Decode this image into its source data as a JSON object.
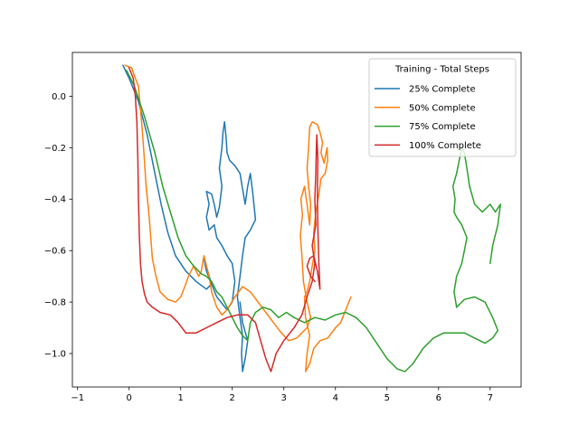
{
  "chart_data": {
    "type": "line",
    "title": "",
    "xlabel": "",
    "ylabel": "",
    "xlim": [
      -1.1,
      7.6
    ],
    "ylim": [
      -1.13,
      0.17
    ],
    "xticks": [
      -1,
      0,
      1,
      2,
      3,
      4,
      5,
      6,
      7
    ],
    "yticks": [
      0.0,
      -0.2,
      -0.4,
      -0.6,
      -0.8,
      -1.0
    ],
    "xtick_labels": [
      "−1",
      "0",
      "1",
      "2",
      "3",
      "4",
      "5",
      "6",
      "7"
    ],
    "ytick_labels": [
      "0.0",
      "−0.2",
      "−0.4",
      "−0.6",
      "−0.8",
      "−1.0"
    ],
    "grid": false,
    "legend": {
      "title": "Training - Total Steps",
      "placement": "top-right"
    },
    "series": [
      {
        "name": "25% Complete",
        "color": "#1f77b4",
        "points": [
          [
            -0.12,
            0.12
          ],
          [
            0.0,
            0.07
          ],
          [
            0.18,
            -0.02
          ],
          [
            0.35,
            -0.15
          ],
          [
            0.5,
            -0.3
          ],
          [
            0.62,
            -0.42
          ],
          [
            0.75,
            -0.53
          ],
          [
            0.9,
            -0.62
          ],
          [
            1.1,
            -0.68
          ],
          [
            1.3,
            -0.72
          ],
          [
            1.5,
            -0.75
          ],
          [
            1.6,
            -0.73
          ],
          [
            1.45,
            -0.63
          ],
          [
            1.5,
            -0.68
          ],
          [
            1.7,
            -0.78
          ],
          [
            1.9,
            -0.83
          ],
          [
            2.0,
            -0.8
          ],
          [
            2.05,
            -0.72
          ],
          [
            2.0,
            -0.65
          ],
          [
            1.9,
            -0.62
          ],
          [
            1.8,
            -0.58
          ],
          [
            1.7,
            -0.55
          ],
          [
            1.65,
            -0.5
          ],
          [
            1.55,
            -0.52
          ],
          [
            1.5,
            -0.47
          ],
          [
            1.55,
            -0.42
          ],
          [
            1.5,
            -0.37
          ],
          [
            1.6,
            -0.38
          ],
          [
            1.65,
            -0.42
          ],
          [
            1.7,
            -0.47
          ],
          [
            1.75,
            -0.43
          ],
          [
            1.8,
            -0.35
          ],
          [
            1.75,
            -0.28
          ],
          [
            1.8,
            -0.2
          ],
          [
            1.82,
            -0.14
          ],
          [
            1.85,
            -0.1
          ],
          [
            1.88,
            -0.16
          ],
          [
            1.9,
            -0.22
          ],
          [
            1.95,
            -0.25
          ],
          [
            2.05,
            -0.27
          ],
          [
            2.15,
            -0.3
          ],
          [
            2.2,
            -0.36
          ],
          [
            2.25,
            -0.42
          ],
          [
            2.3,
            -0.35
          ],
          [
            2.35,
            -0.3
          ],
          [
            2.4,
            -0.38
          ],
          [
            2.45,
            -0.48
          ],
          [
            2.35,
            -0.52
          ],
          [
            2.25,
            -0.55
          ],
          [
            2.2,
            -0.62
          ],
          [
            2.15,
            -0.7
          ],
          [
            2.1,
            -0.78
          ],
          [
            2.15,
            -0.86
          ],
          [
            2.2,
            -0.93
          ],
          [
            2.18,
            -1.0
          ],
          [
            2.2,
            -1.07
          ],
          [
            2.25,
            -1.02
          ],
          [
            2.3,
            -0.95
          ],
          [
            2.2,
            -0.88
          ],
          [
            2.15,
            -0.8
          ]
        ]
      },
      {
        "name": "50% Complete",
        "color": "#ff7f0e",
        "points": [
          [
            -0.08,
            0.12
          ],
          [
            0.05,
            0.11
          ],
          [
            0.1,
            0.08
          ],
          [
            0.18,
            0.04
          ],
          [
            0.22,
            -0.05
          ],
          [
            0.25,
            -0.12
          ],
          [
            0.28,
            -0.2
          ],
          [
            0.33,
            -0.35
          ],
          [
            0.38,
            -0.45
          ],
          [
            0.42,
            -0.55
          ],
          [
            0.45,
            -0.63
          ],
          [
            0.52,
            -0.7
          ],
          [
            0.6,
            -0.76
          ],
          [
            0.75,
            -0.79
          ],
          [
            0.9,
            -0.8
          ],
          [
            1.0,
            -0.78
          ],
          [
            1.08,
            -0.74
          ],
          [
            1.15,
            -0.7
          ],
          [
            1.25,
            -0.66
          ],
          [
            1.35,
            -0.7
          ],
          [
            1.4,
            -0.68
          ],
          [
            1.45,
            -0.62
          ],
          [
            1.55,
            -0.7
          ],
          [
            1.6,
            -0.76
          ],
          [
            1.7,
            -0.82
          ],
          [
            1.8,
            -0.85
          ],
          [
            1.9,
            -0.83
          ],
          [
            2.05,
            -0.78
          ],
          [
            2.2,
            -0.74
          ],
          [
            2.35,
            -0.76
          ],
          [
            2.5,
            -0.8
          ],
          [
            2.65,
            -0.84
          ],
          [
            2.8,
            -0.88
          ],
          [
            2.95,
            -0.92
          ],
          [
            3.1,
            -0.95
          ],
          [
            3.25,
            -0.94
          ],
          [
            3.35,
            -0.92
          ],
          [
            3.45,
            -0.9
          ],
          [
            3.52,
            -0.86
          ],
          [
            3.45,
            -0.8
          ],
          [
            3.38,
            -0.72
          ],
          [
            3.35,
            -0.62
          ],
          [
            3.32,
            -0.54
          ],
          [
            3.36,
            -0.46
          ],
          [
            3.33,
            -0.4
          ],
          [
            3.4,
            -0.35
          ],
          [
            3.45,
            -0.42
          ],
          [
            3.5,
            -0.5
          ],
          [
            3.52,
            -0.42
          ],
          [
            3.48,
            -0.35
          ],
          [
            3.45,
            -0.28
          ],
          [
            3.48,
            -0.2
          ],
          [
            3.5,
            -0.12
          ],
          [
            3.55,
            -0.1
          ],
          [
            3.65,
            -0.11
          ],
          [
            3.7,
            -0.14
          ],
          [
            3.75,
            -0.18
          ],
          [
            3.72,
            -0.22
          ],
          [
            3.78,
            -0.26
          ],
          [
            3.84,
            -0.2
          ],
          [
            3.85,
            -0.25
          ],
          [
            3.8,
            -0.3
          ],
          [
            3.72,
            -0.32
          ],
          [
            3.68,
            -0.38
          ],
          [
            3.62,
            -0.45
          ],
          [
            3.58,
            -0.53
          ],
          [
            3.6,
            -0.6
          ],
          [
            3.55,
            -0.66
          ],
          [
            3.5,
            -0.72
          ],
          [
            3.45,
            -0.76
          ],
          [
            3.4,
            -0.78
          ],
          [
            3.42,
            -0.86
          ],
          [
            3.5,
            -0.93
          ],
          [
            3.45,
            -1.0
          ],
          [
            3.42,
            -1.07
          ],
          [
            3.5,
            -1.04
          ],
          [
            3.58,
            -0.98
          ],
          [
            3.7,
            -0.95
          ],
          [
            3.85,
            -0.94
          ],
          [
            4.0,
            -0.9
          ],
          [
            4.1,
            -0.88
          ],
          [
            4.2,
            -0.83
          ],
          [
            4.3,
            -0.78
          ]
        ]
      },
      {
        "name": "75% Complete",
        "color": "#2ca02c",
        "points": [
          [
            -0.05,
            0.1
          ],
          [
            0.1,
            0.04
          ],
          [
            0.3,
            -0.08
          ],
          [
            0.5,
            -0.22
          ],
          [
            0.65,
            -0.35
          ],
          [
            0.8,
            -0.45
          ],
          [
            0.95,
            -0.55
          ],
          [
            1.1,
            -0.62
          ],
          [
            1.25,
            -0.66
          ],
          [
            1.4,
            -0.69
          ],
          [
            1.5,
            -0.7
          ],
          [
            1.6,
            -0.72
          ],
          [
            1.7,
            -0.76
          ],
          [
            1.8,
            -0.78
          ],
          [
            1.9,
            -0.82
          ],
          [
            2.0,
            -0.86
          ],
          [
            2.1,
            -0.9
          ],
          [
            2.2,
            -0.93
          ],
          [
            2.3,
            -0.95
          ],
          [
            2.35,
            -0.88
          ],
          [
            2.45,
            -0.84
          ],
          [
            2.6,
            -0.82
          ],
          [
            2.75,
            -0.83
          ],
          [
            2.9,
            -0.86
          ],
          [
            3.05,
            -0.84
          ],
          [
            3.2,
            -0.86
          ],
          [
            3.4,
            -0.88
          ],
          [
            3.6,
            -0.86
          ],
          [
            3.8,
            -0.87
          ],
          [
            4.0,
            -0.85
          ],
          [
            4.2,
            -0.84
          ],
          [
            4.4,
            -0.86
          ],
          [
            4.6,
            -0.9
          ],
          [
            4.8,
            -0.96
          ],
          [
            5.0,
            -1.02
          ],
          [
            5.2,
            -1.06
          ],
          [
            5.35,
            -1.07
          ],
          [
            5.5,
            -1.04
          ],
          [
            5.7,
            -0.98
          ],
          [
            5.9,
            -0.94
          ],
          [
            6.1,
            -0.92
          ],
          [
            6.3,
            -0.92
          ],
          [
            6.5,
            -0.92
          ],
          [
            6.7,
            -0.94
          ],
          [
            6.9,
            -0.96
          ],
          [
            7.05,
            -0.94
          ],
          [
            7.15,
            -0.91
          ],
          [
            7.05,
            -0.86
          ],
          [
            6.9,
            -0.8
          ],
          [
            6.7,
            -0.78
          ],
          [
            6.5,
            -0.79
          ],
          [
            6.35,
            -0.82
          ],
          [
            6.3,
            -0.76
          ],
          [
            6.35,
            -0.7
          ],
          [
            6.45,
            -0.65
          ],
          [
            6.5,
            -0.6
          ],
          [
            6.55,
            -0.55
          ],
          [
            6.45,
            -0.5
          ],
          [
            6.35,
            -0.47
          ],
          [
            6.3,
            -0.45
          ],
          [
            6.32,
            -0.4
          ],
          [
            6.28,
            -0.35
          ],
          [
            6.35,
            -0.3
          ],
          [
            6.4,
            -0.25
          ],
          [
            6.45,
            -0.2
          ],
          [
            6.5,
            -0.22
          ],
          [
            6.55,
            -0.28
          ],
          [
            6.6,
            -0.35
          ],
          [
            6.7,
            -0.42
          ],
          [
            6.85,
            -0.45
          ],
          [
            7.0,
            -0.42
          ],
          [
            7.1,
            -0.45
          ],
          [
            7.2,
            -0.42
          ],
          [
            7.15,
            -0.5
          ],
          [
            7.05,
            -0.58
          ],
          [
            7.0,
            -0.65
          ]
        ]
      },
      {
        "name": "100% Complete",
        "color": "#d62728",
        "points": [
          [
            0.0,
            0.11
          ],
          [
            0.08,
            0.07
          ],
          [
            0.12,
            0.0
          ],
          [
            0.15,
            -0.1
          ],
          [
            0.17,
            -0.25
          ],
          [
            0.18,
            -0.4
          ],
          [
            0.2,
            -0.55
          ],
          [
            0.22,
            -0.65
          ],
          [
            0.25,
            -0.72
          ],
          [
            0.3,
            -0.77
          ],
          [
            0.35,
            -0.8
          ],
          [
            0.45,
            -0.82
          ],
          [
            0.6,
            -0.84
          ],
          [
            0.8,
            -0.85
          ],
          [
            0.95,
            -0.88
          ],
          [
            1.1,
            -0.92
          ],
          [
            1.3,
            -0.92
          ],
          [
            1.5,
            -0.9
          ],
          [
            1.7,
            -0.88
          ],
          [
            1.9,
            -0.86
          ],
          [
            2.1,
            -0.85
          ],
          [
            2.3,
            -0.85
          ],
          [
            2.45,
            -0.88
          ],
          [
            2.55,
            -0.95
          ],
          [
            2.65,
            -1.02
          ],
          [
            2.75,
            -1.07
          ],
          [
            2.85,
            -1.0
          ],
          [
            3.0,
            -0.95
          ],
          [
            3.2,
            -0.9
          ],
          [
            3.35,
            -0.85
          ],
          [
            3.45,
            -0.78
          ],
          [
            3.55,
            -0.72
          ],
          [
            3.6,
            -0.65
          ],
          [
            3.55,
            -0.58
          ],
          [
            3.62,
            -0.5
          ],
          [
            3.6,
            -0.4
          ],
          [
            3.62,
            -0.3
          ],
          [
            3.63,
            -0.2
          ],
          [
            3.64,
            -0.15
          ],
          [
            3.66,
            -0.25
          ],
          [
            3.65,
            -0.38
          ],
          [
            3.66,
            -0.52
          ],
          [
            3.68,
            -0.65
          ],
          [
            3.7,
            -0.75
          ],
          [
            3.65,
            -0.68
          ],
          [
            3.58,
            -0.62
          ],
          [
            3.5,
            -0.63
          ],
          [
            3.45,
            -0.66
          ],
          [
            3.52,
            -0.7
          ],
          [
            3.6,
            -0.72
          ]
        ]
      }
    ]
  }
}
